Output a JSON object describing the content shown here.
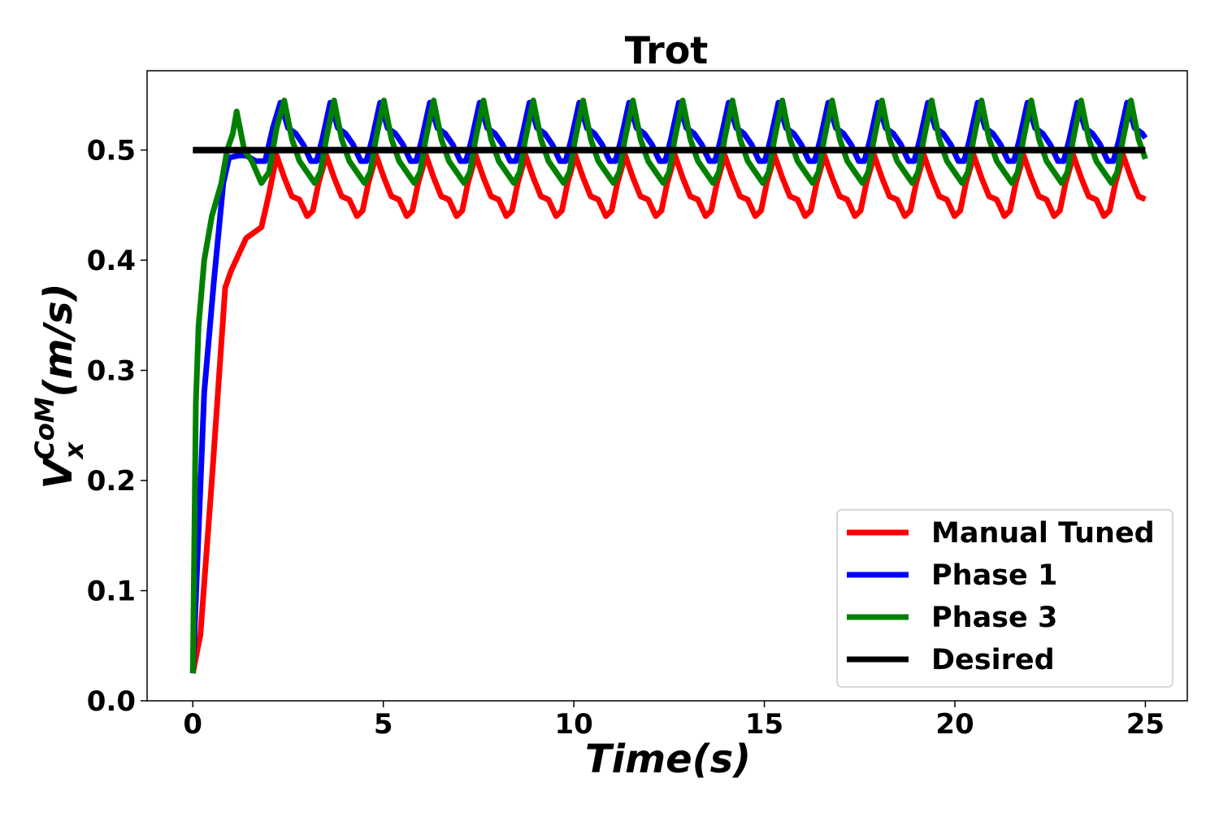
{
  "chart_data": {
    "type": "line",
    "title": "Trot",
    "xlabel": "Time(s)",
    "ylabel": {
      "base": "V",
      "sub": "x",
      "sup": "CoM",
      "unit": "(m/s)"
    },
    "xlim": [
      -1.2,
      26.1
    ],
    "ylim": [
      0.0,
      0.572
    ],
    "xticks": [
      0,
      5,
      10,
      15,
      20,
      25
    ],
    "xtick_labels": [
      "0",
      "5",
      "10",
      "15",
      "20",
      "25"
    ],
    "yticks": [
      0.0,
      0.1,
      0.2,
      0.3,
      0.4,
      0.5
    ],
    "ytick_labels": [
      "0.0",
      "0.1",
      "0.2",
      "0.3",
      "0.4",
      "0.5"
    ],
    "legend_position": "bottom-right",
    "period": 1.307,
    "series": [
      {
        "name": "Manual Tuned",
        "color": "#ff0000",
        "startup": [
          [
            0.0,
            0.025
          ],
          [
            0.2,
            0.06
          ],
          [
            0.5,
            0.2
          ],
          [
            0.85,
            0.375
          ],
          [
            1.0,
            0.39
          ],
          [
            1.2,
            0.405
          ],
          [
            1.4,
            0.42
          ],
          [
            1.6,
            0.425
          ],
          [
            1.8,
            0.43
          ],
          [
            2.0,
            0.46
          ],
          [
            2.2,
            0.495
          ]
        ],
        "cycle_start": 2.2,
        "cycle": [
          [
            0.0,
            0.495
          ],
          [
            0.2,
            0.475
          ],
          [
            0.4,
            0.458
          ],
          [
            0.6,
            0.455
          ],
          [
            0.8,
            0.44
          ],
          [
            0.95,
            0.445
          ],
          [
            1.1,
            0.47
          ],
          [
            1.307,
            0.495
          ]
        ],
        "end": 25.0
      },
      {
        "name": "Phase 1",
        "color": "#0000ff",
        "startup": [
          [
            0.0,
            0.025
          ],
          [
            0.3,
            0.28
          ],
          [
            0.55,
            0.38
          ],
          [
            0.8,
            0.47
          ],
          [
            0.95,
            0.493
          ],
          [
            1.2,
            0.495
          ],
          [
            1.4,
            0.495
          ],
          [
            1.65,
            0.49
          ],
          [
            1.9,
            0.49
          ],
          [
            2.1,
            0.52
          ],
          [
            2.3,
            0.543
          ]
        ],
        "cycle_start": 2.3,
        "cycle": [
          [
            0.0,
            0.543
          ],
          [
            0.2,
            0.52
          ],
          [
            0.4,
            0.515
          ],
          [
            0.6,
            0.505
          ],
          [
            0.8,
            0.49
          ],
          [
            0.95,
            0.49
          ],
          [
            1.1,
            0.51
          ],
          [
            1.307,
            0.543
          ]
        ],
        "end": 25.0
      },
      {
        "name": "Phase 3",
        "color": "#008000",
        "startup": [
          [
            0.0,
            0.025
          ],
          [
            0.08,
            0.27
          ],
          [
            0.15,
            0.34
          ],
          [
            0.3,
            0.4
          ],
          [
            0.5,
            0.44
          ],
          [
            0.75,
            0.47
          ],
          [
            0.9,
            0.5
          ],
          [
            1.05,
            0.515
          ],
          [
            1.15,
            0.535
          ],
          [
            1.35,
            0.5
          ],
          [
            1.55,
            0.49
          ],
          [
            1.8,
            0.47
          ],
          [
            2.0,
            0.48
          ],
          [
            2.2,
            0.52
          ],
          [
            2.4,
            0.545
          ]
        ],
        "cycle_start": 2.4,
        "cycle": [
          [
            0.0,
            0.545
          ],
          [
            0.2,
            0.51
          ],
          [
            0.4,
            0.49
          ],
          [
            0.6,
            0.48
          ],
          [
            0.8,
            0.47
          ],
          [
            0.95,
            0.48
          ],
          [
            1.1,
            0.51
          ],
          [
            1.307,
            0.545
          ]
        ],
        "end": 25.0
      },
      {
        "name": "Desired",
        "color": "#000000",
        "startup": [
          [
            0.0,
            0.5
          ],
          [
            25.0,
            0.5
          ]
        ],
        "cycle_start": null,
        "cycle": [],
        "end": 25.0
      }
    ]
  }
}
